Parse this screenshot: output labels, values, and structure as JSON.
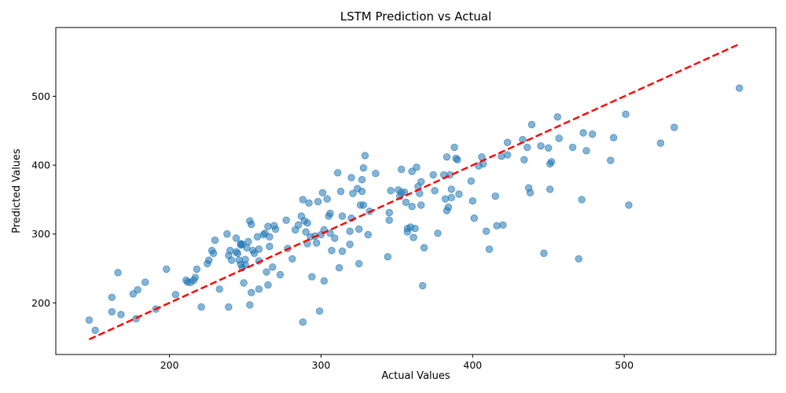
{
  "chart_data": {
    "type": "scatter",
    "title": "LSTM Prediction vs Actual",
    "xlabel": "Actual Values",
    "ylabel": "Predicted Values",
    "xlim": [
      125,
      600
    ],
    "ylim": [
      125,
      600
    ],
    "xticks": [
      200,
      300,
      400,
      500
    ],
    "yticks": [
      200,
      300,
      400,
      500
    ],
    "grid": false,
    "point_color": "#1f77b4",
    "line_color": "#ff0000",
    "reference_line": {
      "x": [
        147,
        576
      ],
      "y": [
        147,
        576
      ]
    },
    "points": [
      [
        147,
        175
      ],
      [
        151,
        160
      ],
      [
        162,
        208
      ],
      [
        162,
        187
      ],
      [
        166,
        244
      ],
      [
        168,
        183
      ],
      [
        176,
        213
      ],
      [
        178,
        177
      ],
      [
        179,
        219
      ],
      [
        184,
        230
      ],
      [
        191,
        191
      ],
      [
        198,
        249
      ],
      [
        204,
        212
      ],
      [
        211,
        233
      ],
      [
        212,
        230
      ],
      [
        214,
        230
      ],
      [
        216,
        233
      ],
      [
        217,
        237
      ],
      [
        218,
        249
      ],
      [
        221,
        194
      ],
      [
        225,
        257
      ],
      [
        226,
        262
      ],
      [
        228,
        276
      ],
      [
        229,
        272
      ],
      [
        230,
        291
      ],
      [
        233,
        220
      ],
      [
        238,
        300
      ],
      [
        239,
        269
      ],
      [
        239,
        194
      ],
      [
        240,
        276
      ],
      [
        241,
        262
      ],
      [
        244,
        294
      ],
      [
        244,
        274
      ],
      [
        245,
        272
      ],
      [
        246,
        262
      ],
      [
        247,
        284
      ],
      [
        247,
        286
      ],
      [
        247,
        256
      ],
      [
        248,
        251
      ],
      [
        248,
        285
      ],
      [
        249,
        229
      ],
      [
        250,
        255
      ],
      [
        250,
        263
      ],
      [
        251,
        280
      ],
      [
        252,
        289
      ],
      [
        253,
        197
      ],
      [
        253,
        319
      ],
      [
        254,
        215
      ],
      [
        254,
        314
      ],
      [
        255,
        276
      ],
      [
        256,
        272
      ],
      [
        258,
        296
      ],
      [
        259,
        278
      ],
      [
        259,
        261
      ],
      [
        259,
        220
      ],
      [
        262,
        299
      ],
      [
        263,
        301
      ],
      [
        264,
        245
      ],
      [
        265,
        311
      ],
      [
        265,
        226
      ],
      [
        266,
        282
      ],
      [
        266,
        296
      ],
      [
        268,
        252
      ],
      [
        269,
        312
      ],
      [
        270,
        307
      ],
      [
        273,
        241
      ],
      [
        277,
        320
      ],
      [
        278,
        279
      ],
      [
        281,
        264
      ],
      [
        283,
        306
      ],
      [
        285,
        313
      ],
      [
        287,
        326
      ],
      [
        288,
        172
      ],
      [
        288,
        350
      ],
      [
        289,
        319
      ],
      [
        290,
        303
      ],
      [
        291,
        316
      ],
      [
        292,
        345
      ],
      [
        291,
        286
      ],
      [
        293,
        296
      ],
      [
        294,
        238
      ],
      [
        296,
        297
      ],
      [
        297,
        287
      ],
      [
        298,
        347
      ],
      [
        299,
        188
      ],
      [
        300,
        299
      ],
      [
        301,
        360
      ],
      [
        302,
        232
      ],
      [
        302,
        306
      ],
      [
        304,
        351
      ],
      [
        305,
        326
      ],
      [
        306,
        301
      ],
      [
        306,
        330
      ],
      [
        307,
        276
      ],
      [
        309,
        294
      ],
      [
        311,
        389
      ],
      [
        312,
        251
      ],
      [
        313,
        362
      ],
      [
        314,
        326
      ],
      [
        314,
        275
      ],
      [
        319,
        304
      ],
      [
        319,
        285
      ],
      [
        320,
        323
      ],
      [
        320,
        382
      ],
      [
        321,
        359
      ],
      [
        324,
        366
      ],
      [
        325,
        257
      ],
      [
        325,
        307
      ],
      [
        326,
        342
      ],
      [
        327,
        379
      ],
      [
        327,
        362
      ],
      [
        328,
        342
      ],
      [
        328,
        396
      ],
      [
        329,
        414
      ],
      [
        331,
        299
      ],
      [
        332,
        333
      ],
      [
        336,
        388
      ],
      [
        344,
        267
      ],
      [
        345,
        331
      ],
      [
        345,
        320
      ],
      [
        346,
        363
      ],
      [
        351,
        364
      ],
      [
        352,
        355
      ],
      [
        353,
        360
      ],
      [
        353,
        394
      ],
      [
        355,
        361
      ],
      [
        356,
        346
      ],
      [
        357,
        303
      ],
      [
        357,
        308
      ],
      [
        359,
        310
      ],
      [
        360,
        340
      ],
      [
        360,
        391
      ],
      [
        361,
        295
      ],
      [
        362,
        308
      ],
      [
        363,
        397
      ],
      [
        364,
        369
      ],
      [
        365,
        359
      ],
      [
        366,
        342
      ],
      [
        366,
        376
      ],
      [
        368,
        280
      ],
      [
        367,
        225
      ],
      [
        374,
        386
      ],
      [
        375,
        363
      ],
      [
        377,
        301
      ],
      [
        381,
        386
      ],
      [
        382,
        351
      ],
      [
        383,
        334
      ],
      [
        383,
        412
      ],
      [
        384,
        339
      ],
      [
        385,
        386
      ],
      [
        386,
        365
      ],
      [
        386,
        353
      ],
      [
        388,
        426
      ],
      [
        389,
        410
      ],
      [
        390,
        408
      ],
      [
        391,
        358
      ],
      [
        399,
        377
      ],
      [
        400,
        348
      ],
      [
        401,
        323
      ],
      [
        404,
        399
      ],
      [
        406,
        412
      ],
      [
        407,
        402
      ],
      [
        409,
        304
      ],
      [
        411,
        278
      ],
      [
        415,
        355
      ],
      [
        416,
        312
      ],
      [
        419,
        413
      ],
      [
        420,
        313
      ],
      [
        423,
        433
      ],
      [
        423,
        415
      ],
      [
        433,
        437
      ],
      [
        434,
        408
      ],
      [
        436,
        426
      ],
      [
        437,
        367
      ],
      [
        438,
        360
      ],
      [
        439,
        459
      ],
      [
        445,
        428
      ],
      [
        447,
        272
      ],
      [
        450,
        425
      ],
      [
        451,
        365
      ],
      [
        451,
        402
      ],
      [
        452,
        405
      ],
      [
        456,
        470
      ],
      [
        457,
        439
      ],
      [
        466,
        426
      ],
      [
        470,
        264
      ],
      [
        472,
        350
      ],
      [
        473,
        447
      ],
      [
        475,
        421
      ],
      [
        479,
        445
      ],
      [
        491,
        407
      ],
      [
        493,
        440
      ],
      [
        501,
        474
      ],
      [
        503,
        342
      ],
      [
        524,
        432
      ],
      [
        533,
        455
      ],
      [
        576,
        512
      ]
    ]
  }
}
